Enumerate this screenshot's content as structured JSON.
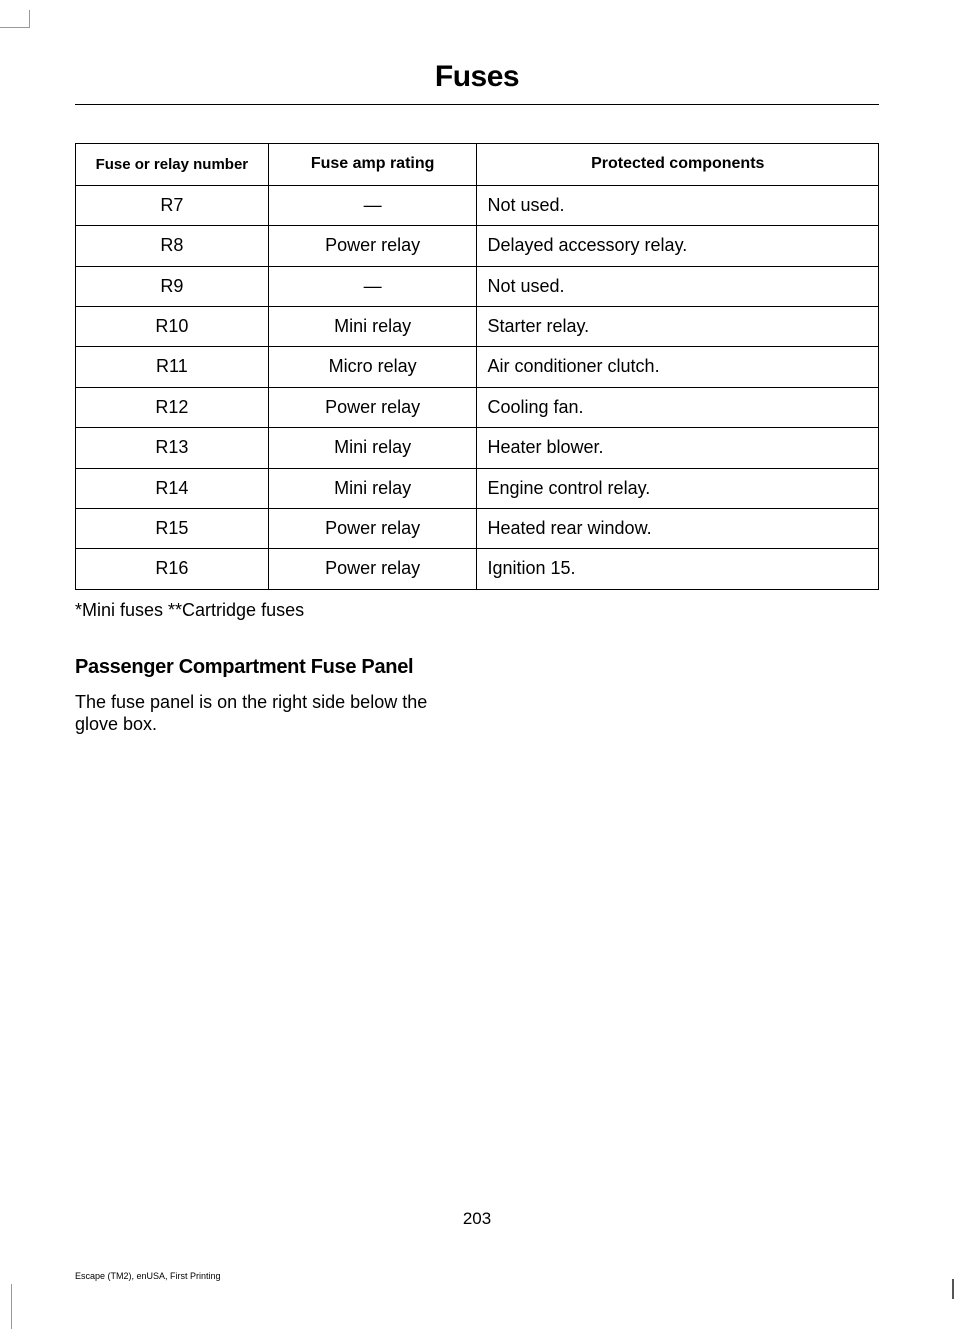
{
  "title": "Fuses",
  "table": {
    "columns": [
      "Fuse or relay number",
      "Fuse amp rating",
      "Protected components"
    ],
    "rows": [
      [
        "R7",
        "—",
        "Not used."
      ],
      [
        "R8",
        "Power relay",
        "Delayed accessory relay."
      ],
      [
        "R9",
        "—",
        "Not used."
      ],
      [
        "R10",
        "Mini relay",
        "Starter relay."
      ],
      [
        "R11",
        "Micro relay",
        "Air conditioner clutch."
      ],
      [
        "R12",
        "Power relay",
        "Cooling fan."
      ],
      [
        "R13",
        "Mini relay",
        "Heater blower."
      ],
      [
        "R14",
        "Mini relay",
        "Engine control relay."
      ],
      [
        "R15",
        "Power relay",
        "Heated rear window."
      ],
      [
        "R16",
        "Power relay",
        "Ignition 15."
      ]
    ]
  },
  "footnote": "*Mini fuses **Cartridge fuses",
  "section_heading": "Passenger Compartment Fuse Panel",
  "section_body": "The fuse panel is on the right side below the glove box.",
  "page_number": "203",
  "imprint": "Escape (TM2), enUSA, First Printing"
}
